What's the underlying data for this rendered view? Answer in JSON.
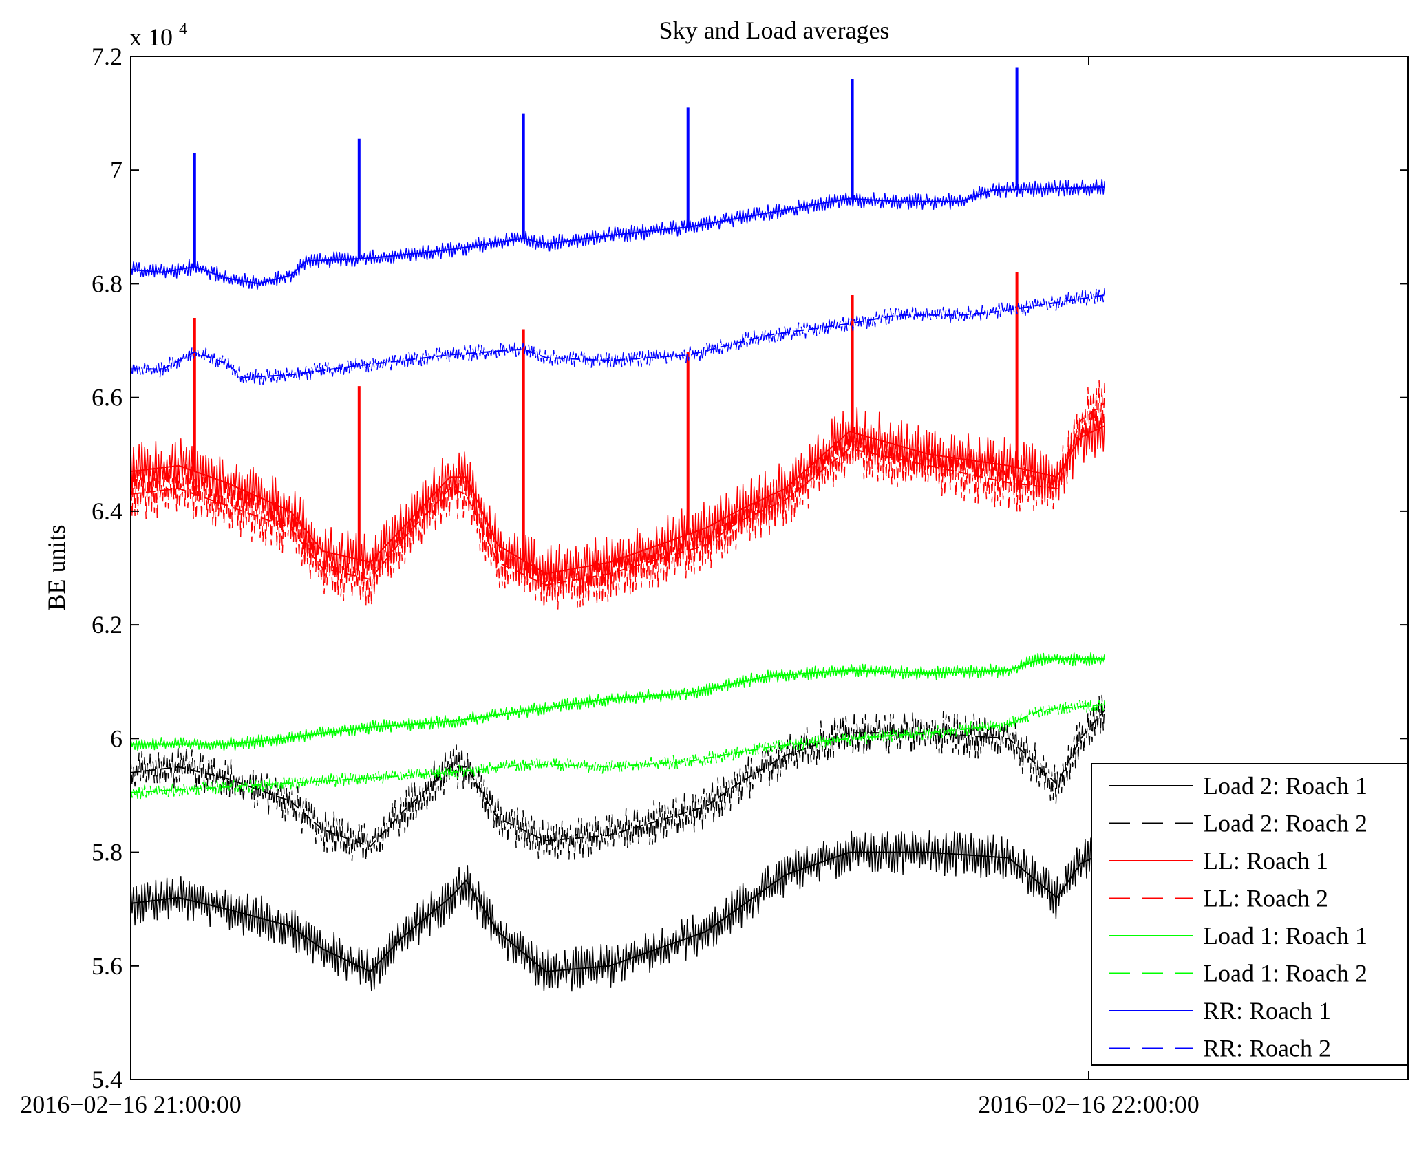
{
  "chart_data": {
    "type": "line",
    "title": "Sky and Load averages",
    "ylabel": "BE units",
    "xlabel": "",
    "y_multiplier": {
      "base": "x 10",
      "exponent": "4"
    },
    "ylim": [
      54000,
      72000
    ],
    "y_ticks": [
      54000,
      56000,
      58000,
      60000,
      62000,
      64000,
      66000,
      68000,
      70000,
      72000
    ],
    "y_tick_labels": [
      "5.4",
      "5.6",
      "5.8",
      "6",
      "6.2",
      "6.4",
      "6.6",
      "6.8",
      "7",
      "7.2"
    ],
    "xlim_minutes": [
      0,
      80
    ],
    "x_ticks_minutes": [
      0,
      60
    ],
    "x_tick_labels": [
      "2016−02−16 21:00:00",
      "2016−02−16 22:00:00"
    ],
    "grid": false,
    "legend_position": "bottom-right",
    "series": [
      {
        "name": "Load 2: Roach 1",
        "color": "#000000",
        "style": "solid",
        "noise": 800,
        "x": [
          0,
          3,
          6,
          10,
          12,
          15,
          17,
          20,
          21,
          23,
          26,
          30,
          36,
          38,
          41,
          45,
          50,
          55,
          58,
          59.5,
          61
        ],
        "y": [
          57100,
          57200,
          57000,
          56700,
          56300,
          55900,
          56500,
          57200,
          57500,
          56600,
          55900,
          56000,
          56600,
          57000,
          57600,
          58000,
          58000,
          57900,
          57200,
          57800,
          58000
        ]
      },
      {
        "name": "Load 2: Roach 2",
        "color": "#000000",
        "style": "dashed",
        "noise": 800,
        "x": [
          0,
          3,
          6,
          10,
          12,
          15,
          17,
          20,
          21,
          23,
          26,
          30,
          36,
          38,
          41,
          45,
          50,
          55,
          58,
          59.5,
          61
        ],
        "y": [
          59400,
          59500,
          59300,
          58900,
          58400,
          58100,
          58700,
          59500,
          59500,
          58600,
          58200,
          58300,
          58800,
          59200,
          59700,
          60100,
          60100,
          60000,
          59200,
          60000,
          60500
        ]
      },
      {
        "name": "LL: Roach 1",
        "color": "#ff0000",
        "style": "solid",
        "noise": 1000,
        "spikes": [
          [
            4,
            67400
          ],
          [
            14.3,
            66200
          ],
          [
            24.6,
            67200
          ],
          [
            34.9,
            66800
          ],
          [
            45.2,
            67800
          ],
          [
            55.5,
            68200
          ]
        ],
        "x": [
          0,
          3,
          6,
          10,
          12,
          15,
          17,
          20,
          21,
          23,
          26,
          30,
          36,
          38,
          41,
          45,
          50,
          55,
          58,
          59.5,
          61
        ],
        "y": [
          64700,
          64800,
          64500,
          64000,
          63300,
          63100,
          63700,
          64600,
          64600,
          63400,
          62900,
          63100,
          63700,
          64000,
          64400,
          65400,
          65000,
          64800,
          64600,
          65300,
          65500
        ]
      },
      {
        "name": "LL: Roach 2",
        "color": "#ff0000",
        "style": "dashed",
        "noise": 1000,
        "x": [
          0,
          3,
          6,
          10,
          12,
          15,
          17,
          20,
          21,
          23,
          26,
          30,
          36,
          38,
          41,
          45,
          50,
          55,
          58,
          59.5,
          61
        ],
        "y": [
          64300,
          64400,
          64100,
          63700,
          63000,
          62800,
          63500,
          64400,
          64300,
          63100,
          62700,
          62900,
          63400,
          63800,
          64200,
          65100,
          64800,
          64500,
          64400,
          65600,
          65900
        ]
      },
      {
        "name": "Load 1: Roach 1",
        "color": "#00ff00",
        "style": "solid",
        "noise": 250,
        "x": [
          0,
          6,
          8,
          15,
          20,
          25,
          30,
          35,
          40,
          45,
          50,
          55,
          57,
          61
        ],
        "y": [
          59900,
          59900,
          59950,
          60200,
          60300,
          60500,
          60700,
          60800,
          61100,
          61200,
          61150,
          61200,
          61400,
          61400
        ]
      },
      {
        "name": "Load 1: Roach 2",
        "color": "#00ff00",
        "style": "dashed",
        "noise": 250,
        "x": [
          0,
          6,
          12,
          20,
          25,
          30,
          35,
          40,
          45,
          50,
          55,
          57,
          61
        ],
        "y": [
          59050,
          59150,
          59250,
          59400,
          59550,
          59500,
          59600,
          59850,
          60000,
          60100,
          60250,
          60500,
          60600
        ]
      },
      {
        "name": "RR: Roach 1",
        "color": "#0000ff",
        "style": "solid",
        "noise": 300,
        "spikes": [
          [
            4,
            70300
          ],
          [
            14.3,
            70550
          ],
          [
            24.6,
            71000
          ],
          [
            34.9,
            71100
          ],
          [
            45.2,
            71600
          ],
          [
            55.5,
            71800
          ]
        ],
        "x": [
          0,
          2,
          4,
          6,
          8,
          10,
          11,
          15,
          20,
          24.6,
          26,
          30,
          35,
          40,
          45,
          48,
          52,
          54,
          61
        ],
        "y": [
          68250,
          68200,
          68300,
          68100,
          68000,
          68150,
          68400,
          68450,
          68600,
          68800,
          68700,
          68850,
          69000,
          69250,
          69500,
          69450,
          69450,
          69650,
          69700
        ]
      },
      {
        "name": "RR: Roach 2",
        "color": "#0000ff",
        "style": "dashed",
        "noise": 300,
        "x": [
          0,
          2,
          4,
          6,
          7,
          10,
          14,
          20,
          24.6,
          26,
          30,
          35,
          40,
          45,
          48,
          52,
          54,
          61
        ],
        "y": [
          66500,
          66500,
          66800,
          66600,
          66350,
          66400,
          66550,
          66750,
          66850,
          66700,
          66650,
          66750,
          67100,
          67300,
          67450,
          67450,
          67500,
          67800
        ]
      }
    ]
  }
}
